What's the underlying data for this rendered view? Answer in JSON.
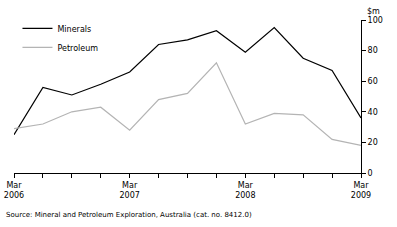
{
  "chart_data": {
    "type": "line",
    "y_label": "$m",
    "source": "Source: Mineral and Petroleum Exploration, Australia (cat. no. 8412.0)",
    "categories": [
      "Mar 2006",
      null,
      null,
      null,
      "Mar 2007",
      null,
      null,
      null,
      "Mar 2008",
      null,
      null,
      null,
      "Mar 2009"
    ],
    "series": [
      {
        "name": "Minerals",
        "color": "#000000",
        "values": [
          25,
          56,
          51,
          58,
          66,
          84,
          87,
          93,
          79,
          95,
          75,
          67,
          36
        ]
      },
      {
        "name": "Petroleum",
        "color": "#b4b4b4",
        "values": [
          29,
          32,
          40,
          43,
          28,
          48,
          52,
          72,
          32,
          39,
          38,
          22,
          18
        ]
      }
    ],
    "ylim": [
      0,
      100
    ],
    "yticks": [
      0,
      20,
      40,
      60,
      80,
      100
    ],
    "grid": false,
    "legend": "top left"
  }
}
